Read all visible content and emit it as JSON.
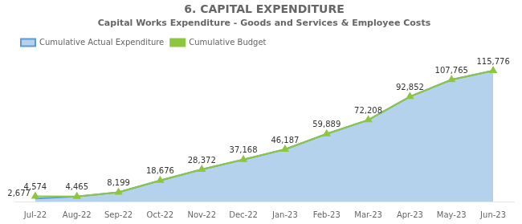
{
  "chart_data": {
    "type": "line",
    "title": "6. CAPITAL EXPENDITURE",
    "subtitle": "Capital Works Expenditure - Goods and Services & Employee Costs",
    "categories": [
      "Jul-22",
      "Aug-22",
      "Sep-22",
      "Oct-22",
      "Nov-22",
      "Dec-22",
      "Jan-23",
      "Feb-23",
      "Mar-23",
      "Apr-23",
      "May-23",
      "Jun-23"
    ],
    "series": [
      {
        "name": "Cumulative Actual Expenditure",
        "type": "area",
        "color": "#5B9BD5",
        "marker": "none",
        "values": [
          2677,
          4465,
          8199,
          18676,
          28372,
          37168,
          46187,
          59889,
          72208,
          92852,
          107765,
          115776
        ],
        "value_labels": [
          "2,677",
          null,
          null,
          null,
          null,
          null,
          null,
          null,
          null,
          null,
          null,
          null
        ]
      },
      {
        "name": "Cumulative Budget",
        "type": "line",
        "color": "#8DC63F",
        "marker": "triangle",
        "values": [
          4574,
          4465,
          8199,
          18676,
          28372,
          37168,
          46187,
          59889,
          72208,
          92852,
          107765,
          115776
        ],
        "value_labels": [
          "4,574",
          "4,465",
          "8,199",
          "18,676",
          "28,372",
          "37,168",
          "46,187",
          "59,889",
          "72,208",
          "92,852",
          "107,765",
          "115,776"
        ]
      }
    ],
    "ylim": [
      0,
      130000
    ],
    "grid": false,
    "legend": "upper left",
    "data_labels": true,
    "tick_labels": "x"
  }
}
